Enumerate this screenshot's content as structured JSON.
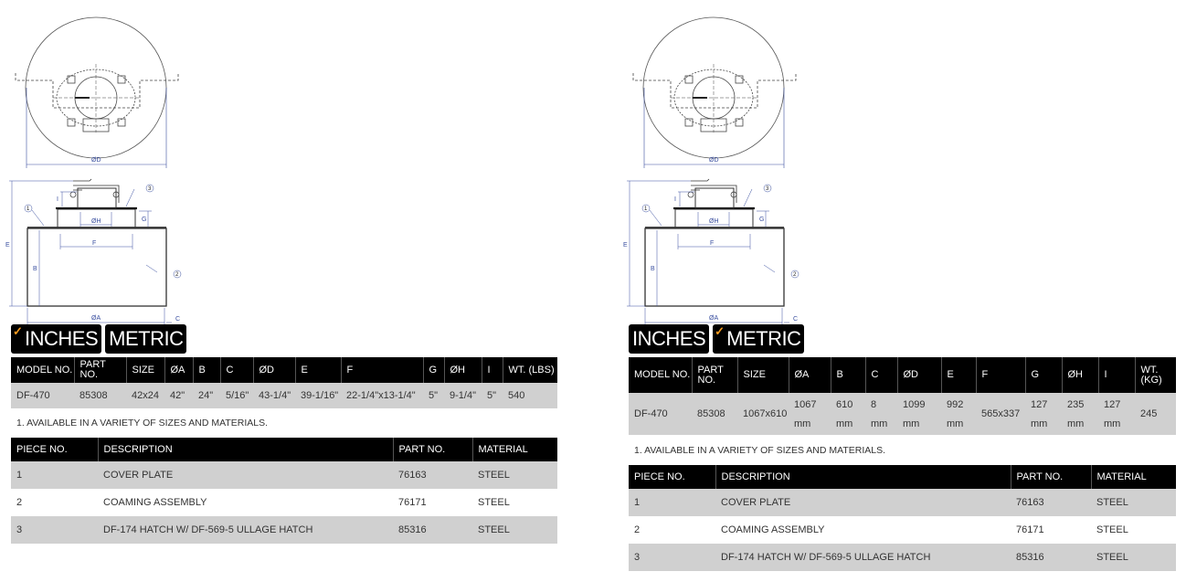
{
  "drawing": {
    "labels": {
      "d": "ØD",
      "h": "ØH",
      "f": "F",
      "e": "E",
      "b": "B",
      "a": "ØA",
      "c": "C",
      "g": "G",
      "i": "I",
      "p1": "1",
      "p2": "2",
      "p3": "3"
    },
    "line_color": "#3a4fa0"
  },
  "tabs": {
    "inches": "INCHES",
    "metric": "METRIC",
    "check_color": "#f39a1e"
  },
  "left": {
    "active_tab": "inches",
    "spec_table": {
      "headers": [
        "MODEL NO.",
        "PART NO.",
        "SIZE",
        "ØA",
        "B",
        "C",
        "ØD",
        "E",
        "F",
        "G",
        "ØH",
        "I",
        "WT. (LBS)"
      ],
      "rows": [
        [
          "DF-470",
          "85308",
          "42x24",
          "42\"",
          "24\"",
          "5/16\"",
          "43-1/4\"",
          "39-1/16\"",
          "22-1/4\"x13-1/4\"",
          "5\"",
          "9-1/4\"",
          "5\"",
          "540"
        ]
      ]
    },
    "note": "1. AVAILABLE IN A VARIETY OF SIZES AND MATERIALS.",
    "parts_table": {
      "headers": [
        "PIECE NO.",
        "DESCRIPTION",
        "PART NO.",
        "MATERIAL"
      ],
      "rows": [
        [
          "1",
          "COVER PLATE",
          "76163",
          "STEEL"
        ],
        [
          "2",
          "COAMING ASSEMBLY",
          "76171",
          "STEEL"
        ],
        [
          "3",
          "DF-174 HATCH W/ DF-569-5 ULLAGE HATCH",
          "85316",
          "STEEL"
        ]
      ]
    }
  },
  "right": {
    "active_tab": "metric",
    "spec_table": {
      "headers": [
        "MODEL NO.",
        "PART NO.",
        "SIZE",
        "ØA",
        "B",
        "C",
        "ØD",
        "E",
        "F",
        "G",
        "ØH",
        "I",
        "WT. (KG)"
      ],
      "rows": [
        [
          "DF-470",
          "85308",
          "1067x610",
          "1067 mm",
          "610 mm",
          "8 mm",
          "1099 mm",
          "992 mm",
          "565x337",
          "127 mm",
          "235 mm",
          "127 mm",
          "245"
        ]
      ]
    },
    "note": "1. AVAILABLE IN A VARIETY OF SIZES AND MATERIALS.",
    "parts_table": {
      "headers": [
        "PIECE NO.",
        "DESCRIPTION",
        "PART NO.",
        "MATERIAL"
      ],
      "rows": [
        [
          "1",
          "COVER PLATE",
          "76163",
          "STEEL"
        ],
        [
          "2",
          "COAMING ASSEMBLY",
          "76171",
          "STEEL"
        ],
        [
          "3",
          "DF-174 HATCH W/ DF-569-5 ULLAGE HATCH",
          "85316",
          "STEEL"
        ]
      ]
    }
  }
}
